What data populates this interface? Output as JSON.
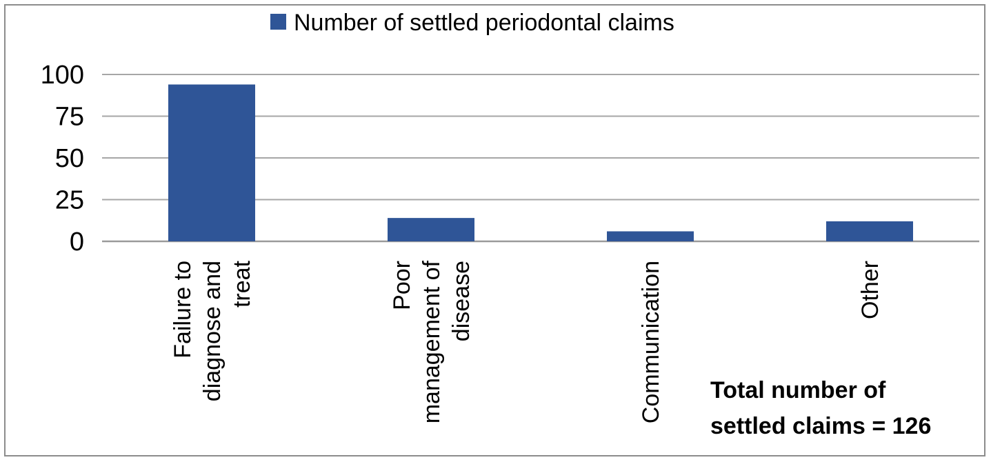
{
  "chart_data": {
    "type": "bar",
    "categories": [
      [
        "Failure to",
        "diagnose and",
        "treat"
      ],
      [
        "Poor",
        "management of",
        "disease"
      ],
      [
        "Communication"
      ],
      [
        "Other"
      ]
    ],
    "series": [
      {
        "name": "Number of settled periodontal claims",
        "values": [
          94,
          14,
          6,
          12
        ],
        "color": "#2f5597"
      }
    ],
    "y_ticks": [
      0,
      25,
      50,
      75,
      100
    ],
    "ylim": [
      0,
      100
    ],
    "grid": true,
    "legend_position": "top-center",
    "annotation": [
      "Total number of",
      "settled claims = 126"
    ]
  }
}
